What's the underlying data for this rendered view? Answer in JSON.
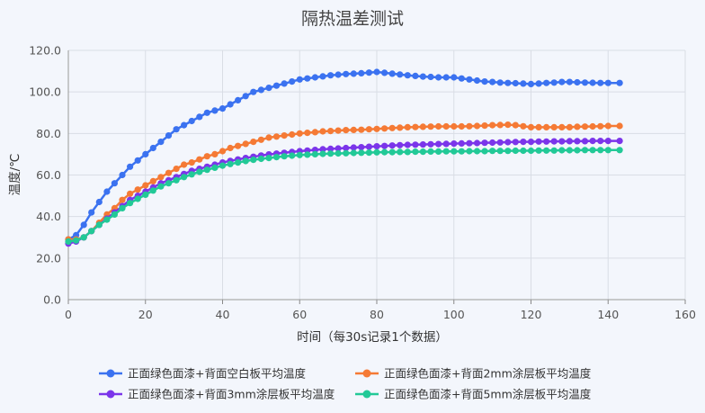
{
  "chart_data": {
    "type": "line",
    "title": "隔热温差测试",
    "xlabel": "时间（每30s记录1个数据）",
    "ylabel": "温度/℃",
    "xlim": [
      0,
      160
    ],
    "ylim": [
      0,
      120
    ],
    "x_ticks": [
      "0",
      "20",
      "40",
      "60",
      "80",
      "100",
      "120",
      "140",
      "160"
    ],
    "y_ticks": [
      "0.0",
      "20.0",
      "40.0",
      "60.0",
      "80.0",
      "100.0",
      "120.0"
    ],
    "grid": true,
    "legend_position": "bottom",
    "series": [
      {
        "name": "正面绿色面漆+背面空白板平均温度",
        "color": "#3b72f0",
        "points": [
          [
            0,
            29
          ],
          [
            2,
            31
          ],
          [
            4,
            36
          ],
          [
            6,
            42
          ],
          [
            8,
            47
          ],
          [
            10,
            52
          ],
          [
            12,
            56
          ],
          [
            14,
            60
          ],
          [
            16,
            64
          ],
          [
            18,
            67
          ],
          [
            20,
            70
          ],
          [
            22,
            73
          ],
          [
            24,
            76
          ],
          [
            26,
            79
          ],
          [
            28,
            82
          ],
          [
            30,
            84
          ],
          [
            32,
            86
          ],
          [
            34,
            88
          ],
          [
            36,
            90
          ],
          [
            38,
            91
          ],
          [
            40,
            92
          ],
          [
            42,
            94
          ],
          [
            44,
            96
          ],
          [
            46,
            98
          ],
          [
            48,
            100
          ],
          [
            50,
            101
          ],
          [
            52,
            102
          ],
          [
            54,
            103
          ],
          [
            56,
            104
          ],
          [
            58,
            105
          ],
          [
            60,
            106
          ],
          [
            62,
            106.5
          ],
          [
            64,
            107
          ],
          [
            66,
            107.5
          ],
          [
            68,
            108
          ],
          [
            70,
            108.3
          ],
          [
            72,
            108.6
          ],
          [
            74,
            108.8
          ],
          [
            76,
            109
          ],
          [
            78,
            109.3
          ],
          [
            80,
            109.6
          ],
          [
            82,
            109.2
          ],
          [
            84,
            108.8
          ],
          [
            86,
            108.4
          ],
          [
            88,
            108
          ],
          [
            90,
            107.7
          ],
          [
            92,
            107.4
          ],
          [
            94,
            107.2
          ],
          [
            96,
            107
          ],
          [
            98,
            107
          ],
          [
            100,
            107
          ],
          [
            102,
            106.5
          ],
          [
            104,
            106
          ],
          [
            106,
            105.5
          ],
          [
            108,
            105
          ],
          [
            110,
            104.8
          ],
          [
            112,
            104.5
          ],
          [
            114,
            104.3
          ],
          [
            116,
            104.2
          ],
          [
            118,
            104
          ],
          [
            120,
            103.8
          ],
          [
            122,
            104
          ],
          [
            124,
            104.3
          ],
          [
            126,
            104.5
          ],
          [
            128,
            104.8
          ],
          [
            130,
            104.8
          ],
          [
            132,
            104.6
          ],
          [
            134,
            104.5
          ],
          [
            136,
            104.4
          ],
          [
            138,
            104.3
          ],
          [
            140,
            104.3
          ],
          [
            143,
            104.3
          ]
        ]
      },
      {
        "name": "正面绿色面漆+背面2mm涂层板平均温度",
        "color": "#f57a35",
        "points": [
          [
            0,
            29
          ],
          [
            2,
            29
          ],
          [
            4,
            30
          ],
          [
            6,
            33
          ],
          [
            8,
            37
          ],
          [
            10,
            41
          ],
          [
            12,
            44
          ],
          [
            14,
            48
          ],
          [
            16,
            51
          ],
          [
            18,
            53
          ],
          [
            20,
            55
          ],
          [
            22,
            57
          ],
          [
            24,
            59
          ],
          [
            26,
            61
          ],
          [
            28,
            63
          ],
          [
            30,
            65
          ],
          [
            32,
            66
          ],
          [
            34,
            67.5
          ],
          [
            36,
            69
          ],
          [
            38,
            70
          ],
          [
            40,
            71.5
          ],
          [
            42,
            73
          ],
          [
            44,
            74
          ],
          [
            46,
            75
          ],
          [
            48,
            76
          ],
          [
            50,
            77
          ],
          [
            52,
            78
          ],
          [
            54,
            78.5
          ],
          [
            56,
            79
          ],
          [
            58,
            79.5
          ],
          [
            60,
            80
          ],
          [
            62,
            80.3
          ],
          [
            64,
            80.6
          ],
          [
            66,
            81
          ],
          [
            68,
            81.2
          ],
          [
            70,
            81.4
          ],
          [
            72,
            81.6
          ],
          [
            74,
            81.7
          ],
          [
            76,
            81.8
          ],
          [
            78,
            82
          ],
          [
            80,
            82.2
          ],
          [
            82,
            82.4
          ],
          [
            84,
            82.6
          ],
          [
            86,
            82.8
          ],
          [
            88,
            83
          ],
          [
            90,
            83.1
          ],
          [
            92,
            83.2
          ],
          [
            94,
            83.3
          ],
          [
            96,
            83.4
          ],
          [
            98,
            83.4
          ],
          [
            100,
            83.4
          ],
          [
            102,
            83.4
          ],
          [
            104,
            83.5
          ],
          [
            106,
            83.6
          ],
          [
            108,
            83.8
          ],
          [
            110,
            84
          ],
          [
            112,
            84.1
          ],
          [
            114,
            84.2
          ],
          [
            116,
            84
          ],
          [
            118,
            83.5
          ],
          [
            120,
            83
          ],
          [
            122,
            83
          ],
          [
            124,
            83
          ],
          [
            126,
            83
          ],
          [
            128,
            83
          ],
          [
            130,
            83
          ],
          [
            132,
            83.2
          ],
          [
            134,
            83.3
          ],
          [
            136,
            83.4
          ],
          [
            138,
            83.5
          ],
          [
            140,
            83.6
          ],
          [
            143,
            83.6
          ]
        ]
      },
      {
        "name": "正面绿色面漆+背面3mm涂层板平均温度",
        "color": "#7b35ea",
        "points": [
          [
            0,
            27
          ],
          [
            2,
            28
          ],
          [
            4,
            30
          ],
          [
            6,
            33
          ],
          [
            8,
            36
          ],
          [
            10,
            39
          ],
          [
            12,
            42
          ],
          [
            14,
            45
          ],
          [
            16,
            48
          ],
          [
            18,
            50
          ],
          [
            20,
            52
          ],
          [
            22,
            54
          ],
          [
            24,
            56
          ],
          [
            26,
            57.5
          ],
          [
            28,
            59
          ],
          [
            30,
            60.5
          ],
          [
            32,
            62
          ],
          [
            34,
            63
          ],
          [
            36,
            64
          ],
          [
            38,
            65
          ],
          [
            40,
            66
          ],
          [
            42,
            66.8
          ],
          [
            44,
            67.5
          ],
          [
            46,
            68.2
          ],
          [
            48,
            68.8
          ],
          [
            50,
            69.4
          ],
          [
            52,
            69.9
          ],
          [
            54,
            70.3
          ],
          [
            56,
            70.7
          ],
          [
            58,
            71.1
          ],
          [
            60,
            71.5
          ],
          [
            62,
            71.8
          ],
          [
            64,
            72.1
          ],
          [
            66,
            72.4
          ],
          [
            68,
            72.6
          ],
          [
            70,
            72.8
          ],
          [
            72,
            73
          ],
          [
            74,
            73.2
          ],
          [
            76,
            73.4
          ],
          [
            78,
            73.6
          ],
          [
            80,
            73.8
          ],
          [
            82,
            74
          ],
          [
            84,
            74.2
          ],
          [
            86,
            74.4
          ],
          [
            88,
            74.5
          ],
          [
            90,
            74.6
          ],
          [
            92,
            74.7
          ],
          [
            94,
            74.8
          ],
          [
            96,
            74.9
          ],
          [
            98,
            75
          ],
          [
            100,
            75.1
          ],
          [
            102,
            75.2
          ],
          [
            104,
            75.3
          ],
          [
            106,
            75.4
          ],
          [
            108,
            75.5
          ],
          [
            110,
            75.6
          ],
          [
            112,
            75.7
          ],
          [
            114,
            75.8
          ],
          [
            116,
            75.9
          ],
          [
            118,
            76
          ],
          [
            120,
            76
          ],
          [
            122,
            76.1
          ],
          [
            124,
            76.1
          ],
          [
            126,
            76.2
          ],
          [
            128,
            76.2
          ],
          [
            130,
            76.3
          ],
          [
            132,
            76.3
          ],
          [
            134,
            76.3
          ],
          [
            136,
            76.4
          ],
          [
            138,
            76.4
          ],
          [
            140,
            76.4
          ],
          [
            143,
            76.4
          ]
        ]
      },
      {
        "name": "正面绿色面漆+背面5mm涂层板平均温度",
        "color": "#22c997",
        "points": [
          [
            0,
            28
          ],
          [
            2,
            28.5
          ],
          [
            4,
            30
          ],
          [
            6,
            33
          ],
          [
            8,
            36
          ],
          [
            10,
            38.5
          ],
          [
            12,
            41
          ],
          [
            14,
            44
          ],
          [
            16,
            46.5
          ],
          [
            18,
            48.5
          ],
          [
            20,
            50.5
          ],
          [
            22,
            52.5
          ],
          [
            24,
            54.5
          ],
          [
            26,
            56
          ],
          [
            28,
            57.5
          ],
          [
            30,
            59
          ],
          [
            32,
            60.3
          ],
          [
            34,
            61.5
          ],
          [
            36,
            62.5
          ],
          [
            38,
            63.5
          ],
          [
            40,
            64.5
          ],
          [
            42,
            65.3
          ],
          [
            44,
            66
          ],
          [
            46,
            66.7
          ],
          [
            48,
            67.3
          ],
          [
            50,
            67.8
          ],
          [
            52,
            68.2
          ],
          [
            54,
            68.6
          ],
          [
            56,
            69
          ],
          [
            58,
            69.3
          ],
          [
            60,
            69.6
          ],
          [
            62,
            69.8
          ],
          [
            64,
            70
          ],
          [
            66,
            70.2
          ],
          [
            68,
            70.3
          ],
          [
            70,
            70.4
          ],
          [
            72,
            70.5
          ],
          [
            74,
            70.6
          ],
          [
            76,
            70.7
          ],
          [
            78,
            70.8
          ],
          [
            80,
            70.9
          ],
          [
            82,
            71
          ],
          [
            84,
            71
          ],
          [
            86,
            71.1
          ],
          [
            88,
            71.1
          ],
          [
            90,
            71.2
          ],
          [
            92,
            71.2
          ],
          [
            94,
            71.3
          ],
          [
            96,
            71.3
          ],
          [
            98,
            71.4
          ],
          [
            100,
            71.4
          ],
          [
            102,
            71.4
          ],
          [
            104,
            71.5
          ],
          [
            106,
            71.5
          ],
          [
            108,
            71.5
          ],
          [
            110,
            71.6
          ],
          [
            112,
            71.6
          ],
          [
            114,
            71.6
          ],
          [
            116,
            71.7
          ],
          [
            118,
            71.7
          ],
          [
            120,
            71.7
          ],
          [
            122,
            71.8
          ],
          [
            124,
            71.8
          ],
          [
            126,
            71.8
          ],
          [
            128,
            71.9
          ],
          [
            130,
            71.9
          ],
          [
            132,
            71.9
          ],
          [
            134,
            72
          ],
          [
            136,
            72
          ],
          [
            138,
            72
          ],
          [
            140,
            72
          ],
          [
            143,
            72
          ]
        ]
      }
    ]
  }
}
